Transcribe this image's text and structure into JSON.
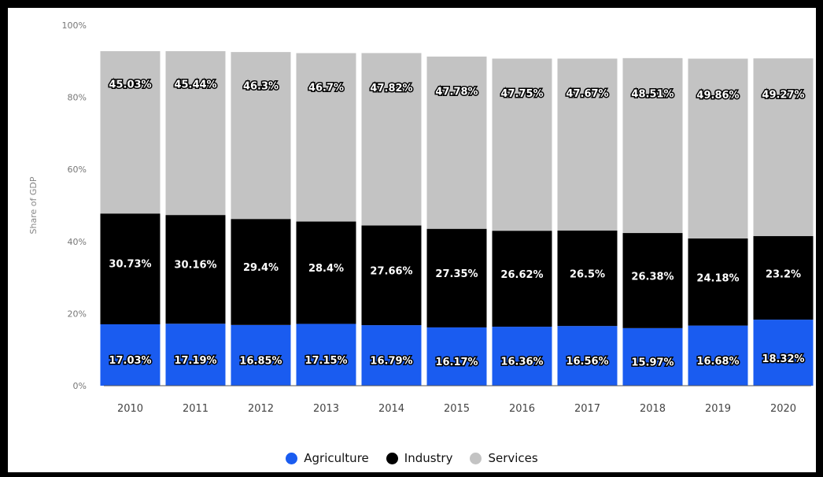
{
  "chart_data": {
    "type": "bar",
    "stacked": true,
    "categories": [
      "2010",
      "2011",
      "2012",
      "2013",
      "2014",
      "2015",
      "2016",
      "2017",
      "2018",
      "2019",
      "2020"
    ],
    "series": [
      {
        "name": "Agriculture",
        "color": "#1a5cf0",
        "values": [
          17.03,
          17.19,
          16.85,
          17.15,
          16.79,
          16.17,
          16.36,
          16.56,
          15.97,
          16.68,
          18.32
        ],
        "labels": [
          "17.03%",
          "17.19%",
          "16.85%",
          "17.15%",
          "16.79%",
          "16.17%",
          "16.36%",
          "16.56%",
          "15.97%",
          "16.68%",
          "18.32%"
        ]
      },
      {
        "name": "Industry",
        "color": "#000000",
        "values": [
          30.73,
          30.16,
          29.4,
          28.4,
          27.66,
          27.35,
          26.62,
          26.5,
          26.38,
          24.18,
          23.2
        ],
        "labels": [
          "30.73%",
          "30.16%",
          "29.4%",
          "28.4%",
          "27.66%",
          "27.35%",
          "26.62%",
          "26.5%",
          "26.38%",
          "24.18%",
          "23.2%"
        ]
      },
      {
        "name": "Services",
        "color": "#c3c3c3",
        "values": [
          45.03,
          45.44,
          46.3,
          46.7,
          47.82,
          47.78,
          47.75,
          47.67,
          48.51,
          49.86,
          49.27
        ],
        "labels": [
          "45.03%",
          "45.44%",
          "46.3%",
          "46.7%",
          "47.82%",
          "47.78%",
          "47.75%",
          "47.67%",
          "48.51%",
          "49.86%",
          "49.27%"
        ]
      }
    ],
    "ylabel": "Share of GDP",
    "ylim": [
      0,
      100
    ],
    "yticks": [
      0,
      20,
      40,
      60,
      80,
      100
    ],
    "ytick_labels": [
      "0%",
      "20%",
      "40%",
      "60%",
      "80%",
      "100%"
    ],
    "grid": false,
    "legend_position": "bottom-center"
  }
}
